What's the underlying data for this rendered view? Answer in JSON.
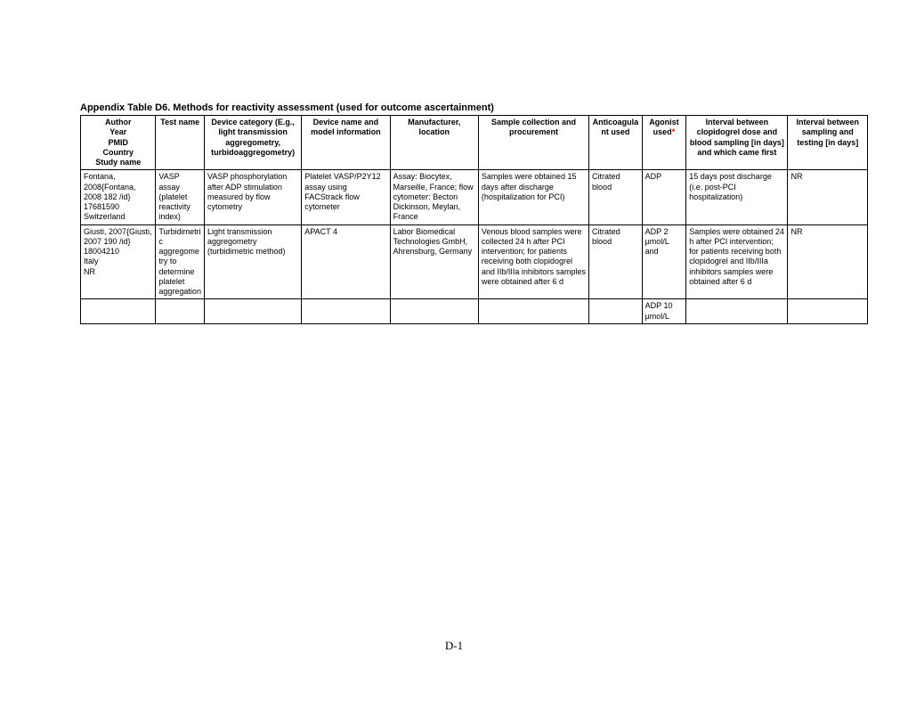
{
  "title": "Appendix Table D6. Methods for reactivity assessment (used for outcome ascertainment)",
  "headers": [
    "Author\nYear\nPMID\nCountry\nStudy name",
    "Test name",
    "Device category (E.g., light transmission aggregometry, turbidoaggregometry)",
    "Device name and model information",
    "Manufacturer, location",
    "Sample collection and procurement",
    "Anticoagulant used",
    "Agonist used",
    "Interval between clopidogrel dose and blood sampling [in days]\nand which came first",
    "Interval between sampling and testing [in days]"
  ],
  "header_red_star": "*",
  "rows": [
    {
      "c0": "Fontana, 2008{Fontana, 2008 182 /id}\n17681590\nSwitzerland",
      "c1": "VASP assay (platelet reactivity index)",
      "c2": "VASP phosphorylation after ADP stimulation measured by flow cytometry",
      "c3": "Platelet VASP/P2Y12 assay using FACStrack flow cytometer",
      "c4": "Assay: Biocytex, Marseille, France; flow cytometer: Becton Dickinson, Meylan, France",
      "c5": "Samples were obtained 15 days after discharge (hospitalization for PCI)",
      "c6": "Citrated blood",
      "c7": "ADP",
      "c8": "15 days post discharge (i.e. post-PCI hospitalization)",
      "c9": "NR"
    },
    {
      "c0": "Giusti, 2007{Giusti, 2007 190 /id}\n18004210\nItaly\nNR",
      "c1": "Turbidimetric aggregometry to determine platelet aggregation",
      "c2": "Light transmission aggregometry (turbidimetric method)",
      "c3": "APACT 4",
      "c4": "Labor Biomedical Technologies GmbH, Ahrensburg, Germany",
      "c5": "Venous blood samples were collected 24 h after PCI intervention; for patients receiving both clopidogrel and IIb/IIIa inhibitors samples were obtained after 6 d",
      "c6": "Citrated blood",
      "c7": "ADP 2 μmol/L and",
      "c8": "Samples were obtained 24 h after PCI intervention; for patients receiving both clopidogrel and IIb/IIIa inhibitors samples were obtained after 6 d",
      "c9": "NR"
    },
    {
      "c0": "",
      "c1": "",
      "c2": "",
      "c3": "",
      "c4": "",
      "c5": "",
      "c6": "",
      "c7": "ADP 10 μmol/L",
      "c8": "",
      "c9": ""
    }
  ],
  "pageNumber": "D-1"
}
